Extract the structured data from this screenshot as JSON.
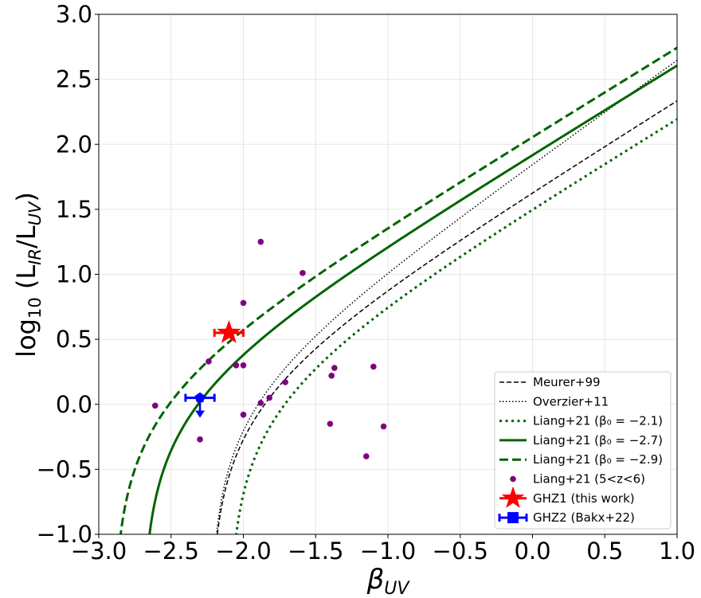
{
  "chart_data": {
    "type": "line",
    "xlabel": "β_UV",
    "ylabel": "log10 (L_IR/L_UV)",
    "xlim": [
      -3.0,
      1.0
    ],
    "ylim": [
      -1.0,
      3.0
    ],
    "x_ticks": [
      -3.0,
      -2.5,
      -2.0,
      -1.5,
      -1.0,
      -0.5,
      0.0,
      0.5,
      1.0
    ],
    "x_tick_labels": [
      "−3.0",
      "−2.5",
      "−2.0",
      "−1.5",
      "−1.0",
      "−0.5",
      "0.0",
      "0.5",
      "1.0"
    ],
    "y_ticks": [
      -1.0,
      -0.5,
      0.0,
      0.5,
      1.0,
      1.5,
      2.0,
      2.5,
      3.0
    ],
    "y_tick_labels": [
      "−1.0",
      "−0.5",
      "0.0",
      "0.5",
      "1.0",
      "1.5",
      "2.0",
      "2.5",
      "3.0"
    ],
    "grid": true,
    "legend_position": "lower-right",
    "curves": [
      {
        "name": "Meurer+99",
        "label": "Meurer+99",
        "beta0": -2.23,
        "ratio": 1.75,
        "color": "#000000",
        "style": "dashed",
        "width": 1.5
      },
      {
        "name": "Overzier+11",
        "label": "Overzier+11",
        "beta0": -2.23,
        "ratio": 1.99,
        "color": "#000000",
        "style": "dotted",
        "width": 1.5
      },
      {
        "name": "Liang+21 (β0=-2.1)",
        "label": "Liang+21 (β₀ = −2.1)",
        "beta0": -2.1,
        "ratio": 1.71,
        "color": "#006400",
        "style": "dotted",
        "width": 3
      },
      {
        "name": "Liang+21 (β0=-2.7)",
        "label": "Liang+21 (β₀ = −2.7)",
        "beta0": -2.7,
        "ratio": 1.71,
        "color": "#006400",
        "style": "solid",
        "width": 3
      },
      {
        "name": "Liang+21 (β0=-2.9)",
        "label": "Liang+21 (β₀ = −2.9)",
        "beta0": -2.9,
        "ratio": 1.71,
        "color": "#006400",
        "style": "dashed",
        "width": 3
      }
    ],
    "scatter": {
      "name": "Liang+21 (5<z<6)",
      "label": "Liang+21 (5<z<6)",
      "color": "#800080",
      "points": [
        {
          "x": -1.88,
          "y": 1.25
        },
        {
          "x": -1.59,
          "y": 1.01
        },
        {
          "x": -2.0,
          "y": 0.78
        },
        {
          "x": -2.24,
          "y": 0.33
        },
        {
          "x": -2.05,
          "y": 0.3
        },
        {
          "x": -2.0,
          "y": 0.3
        },
        {
          "x": -1.37,
          "y": 0.28
        },
        {
          "x": -1.1,
          "y": 0.29
        },
        {
          "x": -1.39,
          "y": 0.22
        },
        {
          "x": -1.71,
          "y": 0.17
        },
        {
          "x": -1.82,
          "y": 0.05
        },
        {
          "x": -1.88,
          "y": 0.01
        },
        {
          "x": -2.61,
          "y": -0.01
        },
        {
          "x": -2.0,
          "y": -0.08
        },
        {
          "x": -1.4,
          "y": -0.15
        },
        {
          "x": -1.03,
          "y": -0.17
        },
        {
          "x": -2.3,
          "y": -0.27
        },
        {
          "x": -1.15,
          "y": -0.4
        }
      ]
    },
    "ghz1": {
      "name": "GHZ1 (this work)",
      "label": "GHZ1 (this work)",
      "x": -2.1,
      "y": 0.55,
      "xerr": 0.1,
      "color": "#ff0000",
      "marker": "star"
    },
    "ghz2": {
      "name": "GHZ2 (Bakx+22)",
      "label": "GHZ2 (Bakx+22)",
      "x": -2.3,
      "y": 0.05,
      "xerr": 0.1,
      "upper_limit": true,
      "color": "#0000ff",
      "marker": "pentagon"
    }
  }
}
